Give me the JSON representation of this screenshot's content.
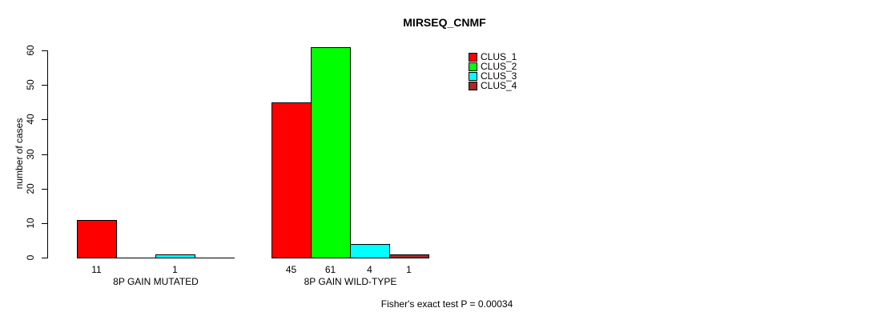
{
  "chart_data": {
    "type": "bar",
    "title": "MIRSEQ_CNMF",
    "xlabel": "",
    "ylabel": "number of cases",
    "categories": [
      "8P GAIN MUTATED",
      "8P GAIN WILD-TYPE"
    ],
    "series": [
      {
        "name": "CLUS_1",
        "color": "#ff0000",
        "values": [
          11,
          45
        ]
      },
      {
        "name": "CLUS_2",
        "color": "#00ff00",
        "values": [
          0,
          61
        ]
      },
      {
        "name": "CLUS_3",
        "color": "#00ffff",
        "values": [
          1,
          4
        ]
      },
      {
        "name": "CLUS_4",
        "color": "#a52a2a",
        "values": [
          0,
          1
        ]
      }
    ],
    "yticks": [
      0,
      10,
      20,
      30,
      40,
      50,
      60
    ],
    "ylim": [
      0,
      61
    ],
    "grid": false,
    "bar_value_labels_shown": true,
    "zero_value_labels_hidden": true,
    "legend_position": "top-right",
    "annotation": "Fisher's exact test P = 0.00034"
  },
  "colors": {
    "axis": "#000000",
    "background": "#ffffff",
    "text": "#000000"
  }
}
